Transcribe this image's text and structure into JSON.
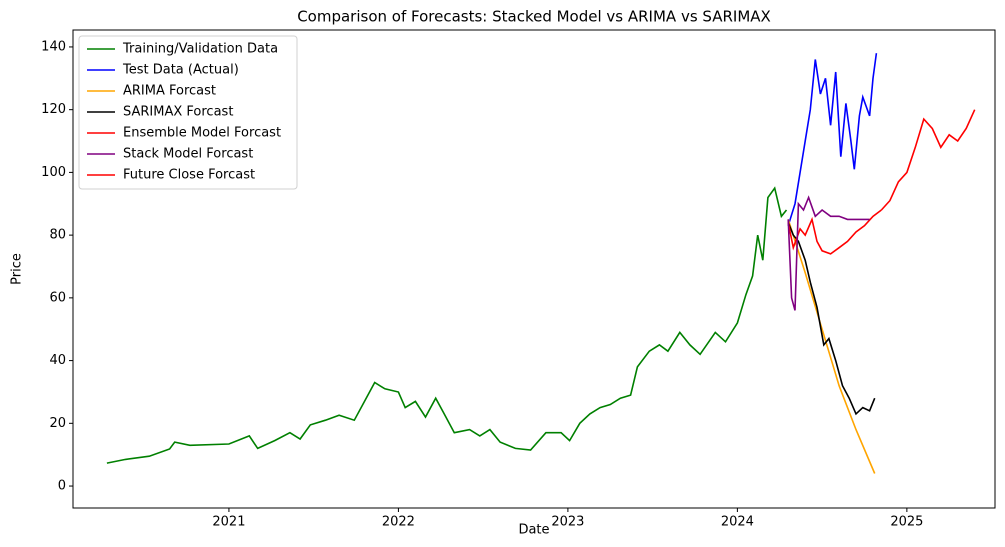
{
  "chart_data": {
    "type": "line",
    "title": "Comparison of Forecasts: Stacked Model vs ARIMA vs SARIMAX",
    "x_label": "Date",
    "y_label": "Price",
    "xlim": [
      2020.08,
      2025.52
    ],
    "xticks": [
      2021,
      2022,
      2023,
      2024,
      2025
    ],
    "ylim": [
      -7.0,
      145.4
    ],
    "yticks": [
      0,
      20,
      40,
      60,
      80,
      100,
      120,
      140
    ],
    "legend": "upper left",
    "grid": false,
    "series": [
      {
        "name": "Training/Validation Data",
        "color": "#008000",
        "x": [
          2020.28,
          2020.39,
          2020.53,
          2020.65,
          2020.68,
          2020.77,
          2021.0,
          2021.12,
          2021.17,
          2021.27,
          2021.36,
          2021.42,
          2021.48,
          2021.57,
          2021.65,
          2021.74,
          2021.8,
          2021.86,
          2021.92,
          2022.0,
          2022.04,
          2022.1,
          2022.16,
          2022.22,
          2022.27,
          2022.33,
          2022.42,
          2022.48,
          2022.54,
          2022.6,
          2022.69,
          2022.78,
          2022.87,
          2022.96,
          2023.01,
          2023.07,
          2023.13,
          2023.19,
          2023.25,
          2023.31,
          2023.37,
          2023.41,
          2023.48,
          2023.54,
          2023.59,
          2023.66,
          2023.72,
          2023.78,
          2023.87,
          2023.93,
          2024.0,
          2024.05,
          2024.09,
          2024.12,
          2024.15,
          2024.18,
          2024.22,
          2024.26,
          2024.29
        ],
        "values": [
          7.3,
          8.5,
          9.5,
          11.8,
          14,
          13,
          13.4,
          16,
          12,
          14.5,
          17,
          15,
          19.5,
          21,
          22.6,
          21,
          27,
          33,
          31,
          30,
          25,
          27,
          22,
          28,
          23,
          17,
          18,
          16,
          18,
          14,
          12,
          11.5,
          17,
          17,
          14.5,
          20,
          23,
          25,
          26,
          28,
          29,
          38,
          43,
          45,
          43,
          49,
          45,
          42,
          49,
          46,
          52,
          61,
          67,
          80,
          72,
          92,
          95,
          86,
          88
        ]
      },
      {
        "name": "Test Data (Actual)",
        "color": "#0000ff",
        "x": [
          2024.3,
          2024.34,
          2024.37,
          2024.4,
          2024.43,
          2024.46,
          2024.49,
          2024.52,
          2024.55,
          2024.58,
          2024.61,
          2024.64,
          2024.67,
          2024.69,
          2024.72,
          2024.74,
          2024.78,
          2024.8,
          2024.82
        ],
        "values": [
          83,
          90,
          100,
          110,
          120,
          136,
          125,
          130,
          115,
          132,
          105,
          122,
          110,
          101,
          118,
          124,
          118,
          130,
          138
        ]
      },
      {
        "name": "ARIMA Forcast",
        "color": "#ffa500",
        "x": [
          2024.3,
          2024.4,
          2024.5,
          2024.6,
          2024.7,
          2024.81
        ],
        "values": [
          85,
          68,
          50,
          32,
          18,
          4
        ]
      },
      {
        "name": "SARIMAX Forcast",
        "color": "#000000",
        "x": [
          2024.3,
          2024.33,
          2024.36,
          2024.4,
          2024.43,
          2024.47,
          2024.51,
          2024.54,
          2024.58,
          2024.62,
          2024.66,
          2024.7,
          2024.74,
          2024.78,
          2024.81
        ],
        "values": [
          84,
          80,
          78,
          72,
          65,
          57,
          45,
          47,
          40,
          32,
          28,
          23,
          25,
          24,
          28
        ]
      },
      {
        "name": "Ensemble Model Forcast",
        "color": "#ff0000",
        "x": [
          2024.3,
          2024.33,
          2024.37,
          2024.4,
          2024.44,
          2024.47,
          2024.5,
          2024.55,
          2024.6,
          2024.65,
          2024.7,
          2024.75,
          2024.8,
          2024.85
        ],
        "values": [
          84,
          76,
          82,
          80,
          85,
          78,
          75,
          74,
          76,
          78,
          81,
          83,
          86,
          88
        ]
      },
      {
        "name": "Stack Model Forcast",
        "color": "#800080",
        "x": [
          2024.3,
          2024.32,
          2024.34,
          2024.36,
          2024.39,
          2024.42,
          2024.46,
          2024.5,
          2024.55,
          2024.6,
          2024.65,
          2024.7,
          2024.78
        ],
        "values": [
          85,
          60,
          56,
          90,
          88,
          92,
          86,
          88,
          86,
          86,
          85,
          85,
          85
        ]
      },
      {
        "name": "Future Close Forcast",
        "color": "#ff0000",
        "x": [
          2024.85,
          2024.9,
          2024.95,
          2025.0,
          2025.05,
          2025.1,
          2025.15,
          2025.2,
          2025.25,
          2025.3,
          2025.35,
          2025.4
        ],
        "values": [
          88,
          91,
          97,
          100,
          108,
          117,
          114,
          108,
          112,
          110,
          114,
          120
        ]
      }
    ]
  }
}
